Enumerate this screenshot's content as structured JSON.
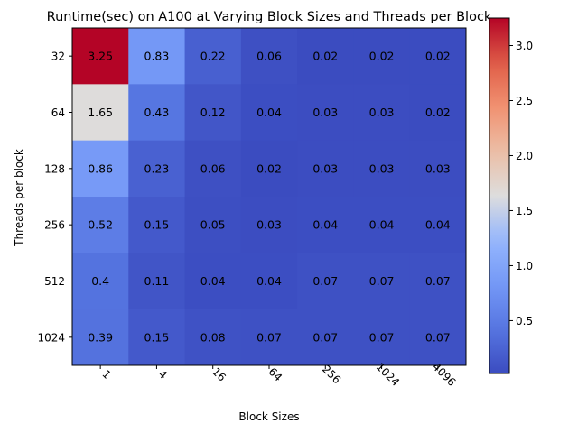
{
  "chart_data": {
    "type": "heatmap",
    "title": "Runtime(sec) on A100 at Varying Block Sizes and Threads per Block",
    "xlabel": "Block Sizes",
    "ylabel": "Threads per block",
    "x_categories": [
      "1",
      "4",
      "16",
      "64",
      "256",
      "1024",
      "4096"
    ],
    "y_categories": [
      "32",
      "64",
      "128",
      "256",
      "512",
      "1024"
    ],
    "values": [
      [
        3.25,
        0.83,
        0.22,
        0.06,
        0.02,
        0.02,
        0.02
      ],
      [
        1.65,
        0.43,
        0.12,
        0.04,
        0.03,
        0.03,
        0.02
      ],
      [
        0.86,
        0.23,
        0.06,
        0.02,
        0.03,
        0.03,
        0.03
      ],
      [
        0.52,
        0.15,
        0.05,
        0.03,
        0.04,
        0.04,
        0.04
      ],
      [
        0.4,
        0.11,
        0.04,
        0.04,
        0.07,
        0.07,
        0.07
      ],
      [
        0.39,
        0.15,
        0.08,
        0.07,
        0.07,
        0.07,
        0.07
      ]
    ],
    "labels": [
      [
        "3.25",
        "0.83",
        "0.22",
        "0.06",
        "0.02",
        "0.02",
        "0.02"
      ],
      [
        "1.65",
        "0.43",
        "0.12",
        "0.04",
        "0.03",
        "0.03",
        "0.02"
      ],
      [
        "0.86",
        "0.23",
        "0.06",
        "0.02",
        "0.03",
        "0.03",
        "0.03"
      ],
      [
        "0.52",
        "0.15",
        "0.05",
        "0.03",
        "0.04",
        "0.04",
        "0.04"
      ],
      [
        "0.4",
        "0.11",
        "0.04",
        "0.04",
        "0.07",
        "0.07",
        "0.07"
      ],
      [
        "0.39",
        "0.15",
        "0.08",
        "0.07",
        "0.07",
        "0.07",
        "0.07"
      ]
    ],
    "colormap": "coolwarm",
    "colorbar": {
      "ticks": [
        0.5,
        1.0,
        1.5,
        2.0,
        2.5,
        3.0
      ],
      "tick_labels": [
        "0.5",
        "1.0",
        "1.5",
        "2.0",
        "2.5",
        "3.0"
      ],
      "range": [
        0.02,
        3.25
      ]
    },
    "x_tick_rotation_deg": 45
  }
}
